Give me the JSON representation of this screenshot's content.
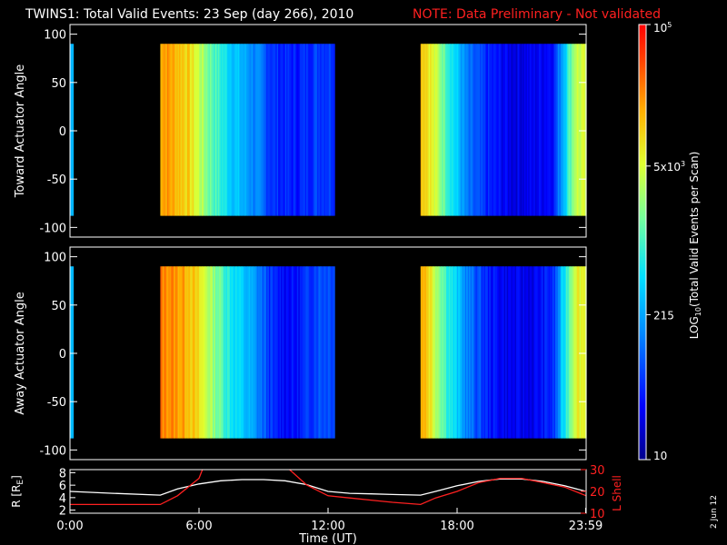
{
  "header": {
    "title": "TWINS1: Total Valid Events: 23 Sep (day 266), 2010",
    "note": "NOTE: Data Preliminary - Not validated"
  },
  "colors": {
    "background": "#000000",
    "note": "#ff2020",
    "lshell": "#ff2020",
    "radius": "#ffffff"
  },
  "date_stamp": "2 Jun 12",
  "colorbar": {
    "label_prefix": "LOG",
    "label_sub": "10",
    "label_rest": "(Total Valid Events per Scan)",
    "ticks": [
      {
        "value": 100000,
        "label": "10",
        "sup": "5"
      },
      {
        "value": 5000,
        "label": "5x10",
        "sup": "3"
      },
      {
        "value": 215,
        "label": "215"
      },
      {
        "value": 10,
        "label": "10"
      }
    ]
  },
  "chart_data": [
    {
      "type": "heatmap",
      "panel": "toward",
      "ylabel": "Toward Actuator Angle",
      "ylim": [
        -110,
        110
      ],
      "yticks": [
        100,
        50,
        0,
        -50,
        -100
      ],
      "xlim": [
        0,
        24
      ],
      "scale": "log10",
      "range": [
        10,
        100000
      ],
      "coverage_hours": [
        [
          0,
          0.15
        ],
        [
          4.2,
          12.3
        ],
        [
          16.3,
          24
        ]
      ],
      "angle_range": [
        -88,
        90
      ],
      "mean_log_counts_by_hour": [
        {
          "hour": 4.5,
          "log": 4.3
        },
        {
          "hour": 5.5,
          "log": 4.0
        },
        {
          "hour": 6.5,
          "log": 3.2
        },
        {
          "hour": 7.5,
          "log": 2.6
        },
        {
          "hour": 8.5,
          "log": 2.2
        },
        {
          "hour": 9.5,
          "log": 1.7
        },
        {
          "hour": 10.5,
          "log": 1.6
        },
        {
          "hour": 11.5,
          "log": 1.8
        },
        {
          "hour": 16.5,
          "log": 4.1
        },
        {
          "hour": 17.5,
          "log": 3.1
        },
        {
          "hour": 18.5,
          "log": 2.0
        },
        {
          "hour": 19.5,
          "log": 1.6
        },
        {
          "hour": 20.5,
          "log": 1.4
        },
        {
          "hour": 21.5,
          "log": 1.4
        },
        {
          "hour": 22.5,
          "log": 1.6
        },
        {
          "hour": 23.5,
          "log": 3.6
        }
      ]
    },
    {
      "type": "heatmap",
      "panel": "away",
      "ylabel": "Away Actuator Angle",
      "ylim": [
        -110,
        110
      ],
      "yticks": [
        100,
        50,
        0,
        -50,
        -100
      ],
      "xlim": [
        0,
        24
      ],
      "scale": "log10",
      "range": [
        10,
        100000
      ],
      "coverage_hours": [
        [
          0,
          0.15
        ],
        [
          4.2,
          12.3
        ],
        [
          16.3,
          24
        ]
      ],
      "angle_range": [
        -88,
        90
      ],
      "mean_log_counts_by_hour": [
        {
          "hour": 4.5,
          "log": 4.4
        },
        {
          "hour": 5.5,
          "log": 4.2
        },
        {
          "hour": 6.5,
          "log": 3.5
        },
        {
          "hour": 7.5,
          "log": 2.8
        },
        {
          "hour": 8.5,
          "log": 2.3
        },
        {
          "hour": 9.5,
          "log": 1.6
        },
        {
          "hour": 10.5,
          "log": 1.5
        },
        {
          "hour": 11.5,
          "log": 1.9
        },
        {
          "hour": 16.5,
          "log": 4.2
        },
        {
          "hour": 17.5,
          "log": 3.0
        },
        {
          "hour": 18.5,
          "log": 2.1
        },
        {
          "hour": 19.5,
          "log": 1.6
        },
        {
          "hour": 20.5,
          "log": 1.4
        },
        {
          "hour": 21.5,
          "log": 1.4
        },
        {
          "hour": 22.5,
          "log": 1.7
        },
        {
          "hour": 23.5,
          "log": 3.8
        }
      ]
    },
    {
      "type": "line",
      "panel": "orbit",
      "ylabel_left": "R [R",
      "ylabel_left_sub": "E",
      "ylabel_left_end": "]",
      "ylabel_right": "L Shell",
      "xlabel": "Time (UT)",
      "xlim": [
        0,
        24
      ],
      "xticks": [
        {
          "value": 0,
          "label": "0:00"
        },
        {
          "value": 6,
          "label": "6:00"
        },
        {
          "value": 12,
          "label": "12:00"
        },
        {
          "value": 18,
          "label": "18:00"
        },
        {
          "value": 23.98,
          "label": "23:59"
        }
      ],
      "ylim_left": [
        1.5,
        8.5
      ],
      "yticks_left": [
        2,
        4,
        6,
        8
      ],
      "ylim_right": [
        10,
        30
      ],
      "yticks_right": [
        10,
        20,
        30
      ],
      "series": [
        {
          "name": "R [RE]",
          "axis": "left",
          "x": [
            0,
            2,
            4.2,
            5,
            6,
            7,
            8,
            9,
            10,
            11,
            12,
            13,
            14,
            15,
            16.3,
            17,
            18,
            19,
            20,
            21,
            22,
            23,
            24
          ],
          "y": [
            5.0,
            4.7,
            4.4,
            5.4,
            6.2,
            6.7,
            6.9,
            6.9,
            6.7,
            6.1,
            5.0,
            4.7,
            4.6,
            4.5,
            4.4,
            5.0,
            5.9,
            6.6,
            7.0,
            7.0,
            6.6,
            5.9,
            5.0
          ]
        },
        {
          "name": "L Shell",
          "axis": "right",
          "x": [
            0,
            2,
            4.2,
            5,
            6,
            6.2,
            10.1,
            11,
            12,
            13,
            14,
            15,
            16.3,
            17,
            18,
            19,
            20,
            21,
            22,
            23,
            24
          ],
          "y": [
            14,
            14,
            14,
            18,
            26,
            31,
            31,
            23,
            18,
            17,
            16,
            15,
            14,
            17,
            20,
            24,
            26,
            26,
            24,
            22,
            18
          ]
        }
      ]
    }
  ]
}
